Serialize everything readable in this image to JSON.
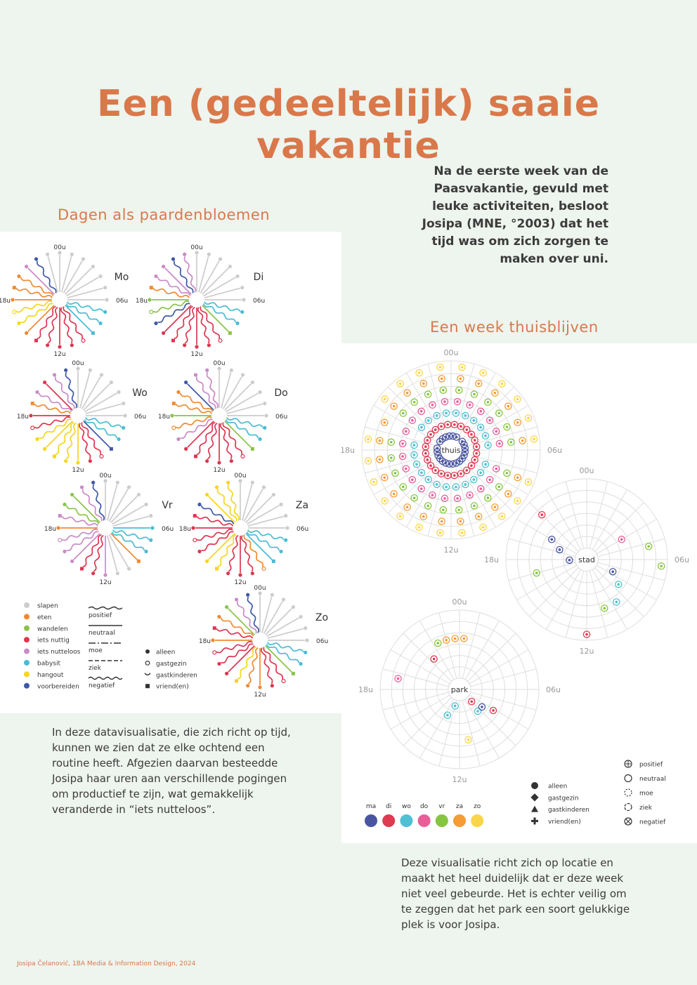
{
  "title": "Een (gedeeltelijk) saaie vakantie",
  "intro": "Na de eerste week van de Paasvakantie, gevuld met leuke activiteiten, besloot Josipa (MNE, °2003) dat het tijd was om zich zorgen te maken over uni.",
  "dandelion": {
    "heading": "Dagen als paardenbloemen",
    "hour_labels": {
      "top": "00u",
      "right": "06u",
      "bottom": "12u",
      "left": "18u"
    },
    "days": [
      {
        "label": "Mo",
        "hours": [
          "slapen",
          "slapen",
          "slapen",
          "slapen",
          "slapen",
          "slapen",
          "slapen",
          "babysit",
          "babysit",
          "babysit",
          "iets nuttig",
          "iets nuttig",
          "iets nuttig",
          "iets nuttig",
          "iets nuttig",
          "eten",
          "hangout",
          "hangout",
          "eten",
          "eten",
          "eten",
          "iets nutteloos",
          "voorbereiden",
          "slapen"
        ]
      },
      {
        "label": "Di",
        "hours": [
          "slapen",
          "slapen",
          "slapen",
          "slapen",
          "slapen",
          "slapen",
          "slapen",
          "babysit",
          "babysit",
          "wandelen",
          "iets nuttig",
          "iets nuttig",
          "iets nuttig",
          "iets nuttig",
          "iets nuttig",
          "iets nuttig",
          "voorbereiden",
          "wandelen",
          "wandelen",
          "eten",
          "iets nutteloos",
          "iets nutteloos",
          "voorbereiden",
          "iets nutteloos"
        ]
      },
      {
        "label": "Wo",
        "hours": [
          "slapen",
          "slapen",
          "slapen",
          "slapen",
          "slapen",
          "slapen",
          "slapen",
          "babysit",
          "babysit",
          "voorbereiden",
          "iets nuttig",
          "iets nuttig",
          "hangout",
          "hangout",
          "hangout",
          "hangout",
          "hangout",
          "iets nuttig",
          "iets nuttig",
          "eten",
          "iets nutteloos",
          "iets nuttig",
          "iets nutteloos",
          "voorbereiden"
        ]
      },
      {
        "label": "Do",
        "hours": [
          "slapen",
          "slapen",
          "slapen",
          "slapen",
          "slapen",
          "slapen",
          "slapen",
          "babysit",
          "babysit",
          "wandelen",
          "iets nuttig",
          "iets nuttig",
          "iets nuttig",
          "iets nuttig",
          "iets nuttig",
          "iets nuttig",
          "iets nutteloos",
          "eten",
          "wandelen",
          "eten",
          "eten",
          "voorbereiden",
          "iets nutteloos",
          "iets nutteloos"
        ]
      },
      {
        "label": "Vr",
        "hours": [
          "slapen",
          "slapen",
          "slapen",
          "slapen",
          "slapen",
          "slapen",
          "babysit",
          "babysit",
          "babysit",
          "eten",
          "slapen",
          "slapen",
          "iets nutteloos",
          "iets nuttig",
          "iets nuttig",
          "iets nutteloos",
          "iets nutteloos",
          "iets nutteloos",
          "eten",
          "iets nutteloos",
          "wandelen",
          "wandelen",
          "iets nutteloos",
          "voorbereiden"
        ]
      },
      {
        "label": "Za",
        "hours": [
          "slapen",
          "slapen",
          "slapen",
          "slapen",
          "slapen",
          "slapen",
          "slapen",
          "babysit",
          "babysit",
          "babysit",
          "eten",
          "iets nuttig",
          "iets nuttig",
          "iets nuttig",
          "hangout",
          "hangout",
          "iets nuttig",
          "iets nuttig",
          "iets nuttig",
          "iets nuttig",
          "voorbereiden",
          "hangout",
          "hangout",
          "hangout"
        ]
      },
      {
        "label": "Zo",
        "hours": [
          "slapen",
          "slapen",
          "slapen",
          "slapen",
          "slapen",
          "slapen",
          "slapen",
          "babysit",
          "babysit",
          "wandelen",
          "iets nuttig",
          "iets nuttig",
          "eten",
          "eten",
          "hangout",
          "iets nuttig",
          "iets nuttig",
          "iets nuttig",
          "eten",
          "iets nuttig",
          "eten",
          "wandelen",
          "iets nutteloos",
          "voorbereiden"
        ]
      }
    ],
    "legend_activities": [
      {
        "name": "slapen",
        "color": "#cccccc"
      },
      {
        "name": "eten",
        "color": "#ef8a32"
      },
      {
        "name": "wandelen",
        "color": "#8bc34a"
      },
      {
        "name": "iets nuttig",
        "color": "#dc3650"
      },
      {
        "name": "iets nutteloos",
        "color": "#c98bc6"
      },
      {
        "name": "babysit",
        "color": "#49bcd3"
      },
      {
        "name": "hangout",
        "color": "#f7d51c"
      },
      {
        "name": "voorbereiden",
        "color": "#3f58a8"
      }
    ],
    "legend_moods": [
      "positief",
      "neutraal",
      "moe",
      "ziek",
      "negatief"
    ],
    "legend_company": [
      "alleen",
      "gastgezin",
      "gastkinderen",
      "vriend(en)"
    ],
    "caption": "In deze datavisualisatie, die zich richt op tijd, kunnen we zien dat ze elke ochtend een routine heeft. Afgezien daarvan besteedde Josipa haar uren aan verschillende pogingen om productief te zijn, wat gemakkelijk veranderde in “iets nutteloos”."
  },
  "location": {
    "heading": "Een week thuisblijven",
    "hour_labels": {
      "top": "00u",
      "right": "06u",
      "bottom": "12u",
      "left": "18u"
    },
    "places": [
      "thuis",
      "stad",
      "park"
    ],
    "day_legend": [
      {
        "name": "ma",
        "color": "#4a55a2"
      },
      {
        "name": "di",
        "color": "#e03a50"
      },
      {
        "name": "wo",
        "color": "#4fc0d4"
      },
      {
        "name": "do",
        "color": "#e85e99"
      },
      {
        "name": "vr",
        "color": "#86c540"
      },
      {
        "name": "za",
        "color": "#f59c34"
      },
      {
        "name": "zo",
        "color": "#fbd548"
      }
    ],
    "company_legend": [
      "alleen",
      "gastgezin",
      "gastkinderen",
      "vriend(en)"
    ],
    "mood_legend": [
      "positief",
      "neutraal",
      "moe",
      "ziek",
      "negatief"
    ],
    "caption": "Deze visualisatie richt zich op locatie en maakt het heel duidelijk dat er deze week niet veel gebeurde. Het is echter veilig om te zeggen dat het park een soort gelukkige plek is voor Josipa."
  },
  "credit": "Josipa Čelanović, 1BA Media & Information Design, 2024"
}
